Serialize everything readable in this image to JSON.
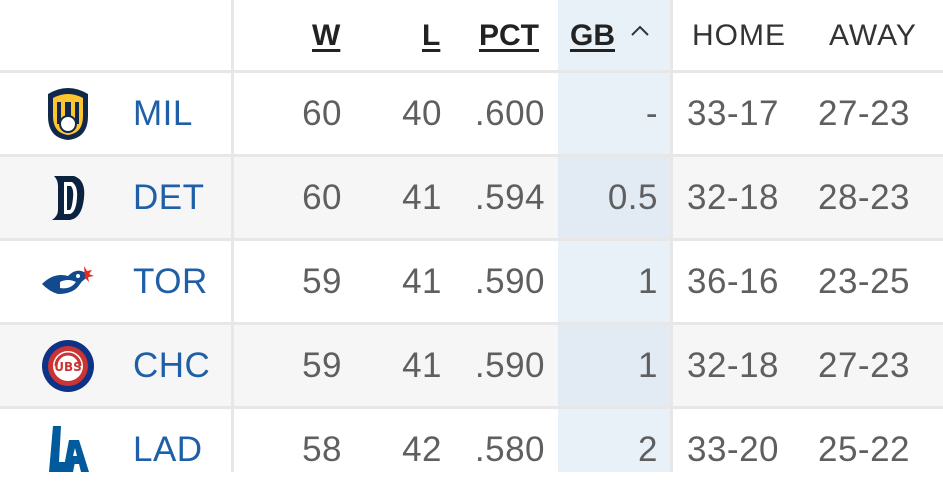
{
  "headers": {
    "w": "W",
    "l": "L",
    "pct": "PCT",
    "gb": "GB",
    "gb_sort_icon": "chevron-up-icon",
    "home": "HOME",
    "away": "AWAY"
  },
  "teams": [
    {
      "abbr": "MIL",
      "w": "60",
      "l": "40",
      "pct": ".600",
      "gb": "-",
      "home": "33-17",
      "away": "27-23",
      "logo": "brewers-logo-icon"
    },
    {
      "abbr": "DET",
      "w": "60",
      "l": "41",
      "pct": ".594",
      "gb": "0.5",
      "home": "32-18",
      "away": "28-23",
      "logo": "tigers-logo-icon"
    },
    {
      "abbr": "TOR",
      "w": "59",
      "l": "41",
      "pct": ".590",
      "gb": "1",
      "home": "36-16",
      "away": "23-25",
      "logo": "blue-jays-logo-icon"
    },
    {
      "abbr": "CHC",
      "w": "59",
      "l": "41",
      "pct": ".590",
      "gb": "1",
      "home": "32-18",
      "away": "27-23",
      "logo": "cubs-logo-icon"
    },
    {
      "abbr": "LAD",
      "w": "58",
      "l": "42",
      "pct": ".580",
      "gb": "2",
      "home": "33-20",
      "away": "25-22",
      "logo": "dodgers-logo-icon"
    }
  ]
}
